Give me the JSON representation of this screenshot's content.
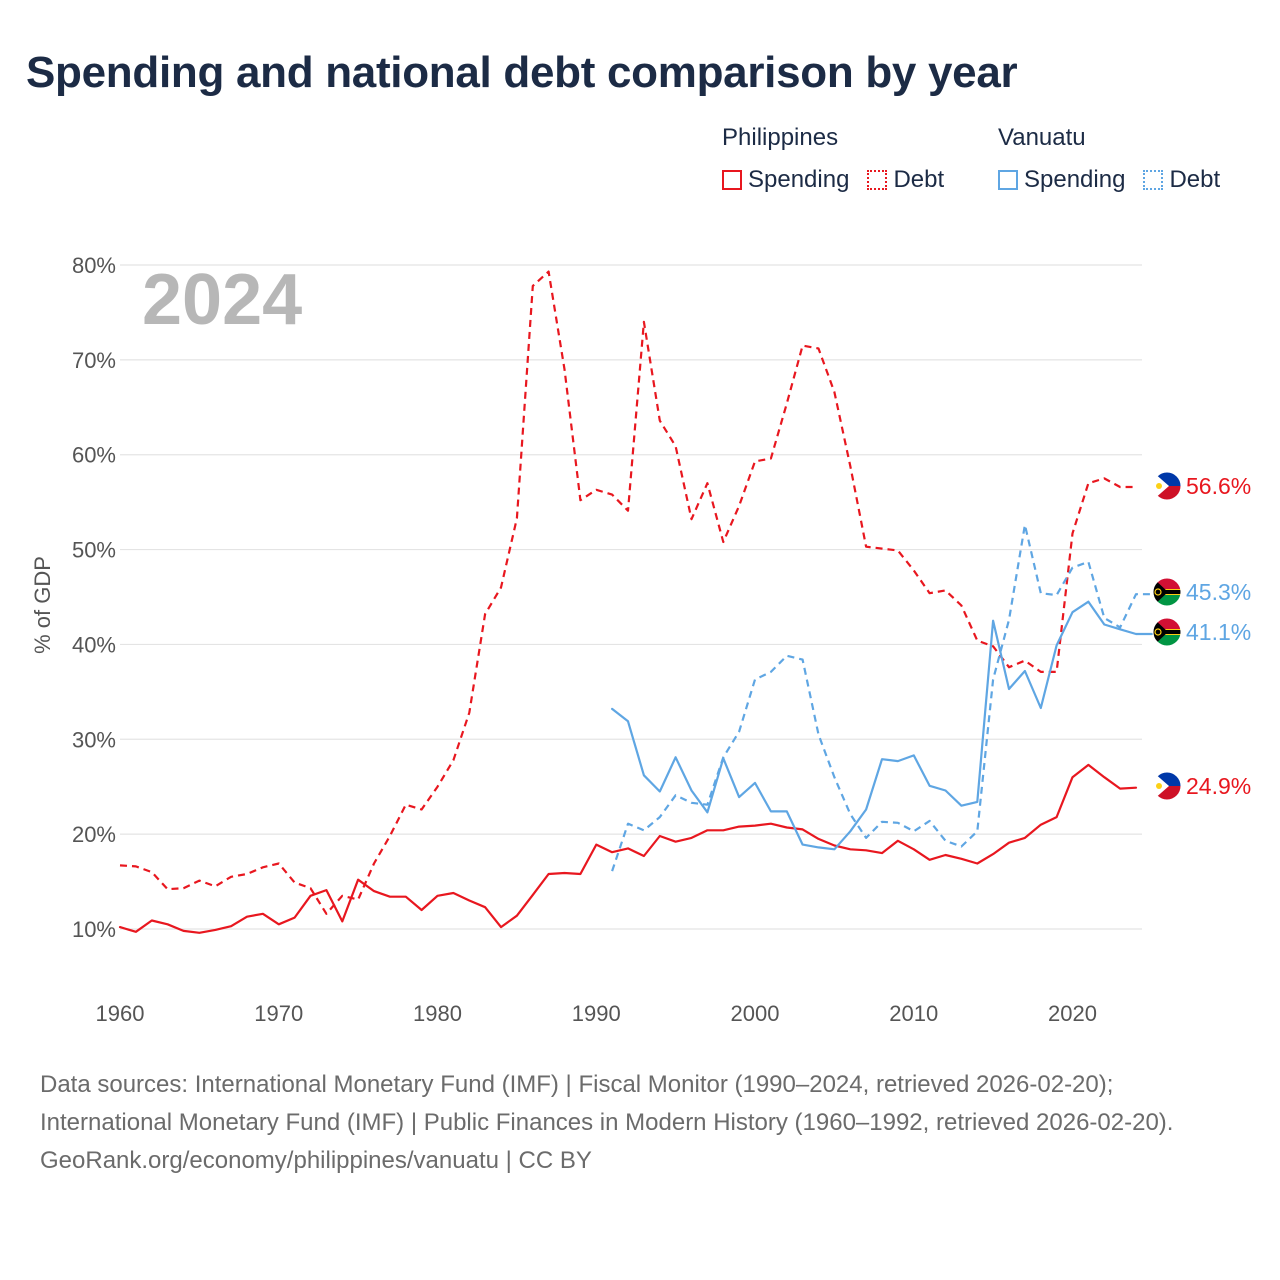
{
  "title": "Spending and national debt comparison by year",
  "legend": {
    "philippines": {
      "name": "Philippines",
      "spending": "Spending",
      "debt": "Debt"
    },
    "vanuatu": {
      "name": "Vanuatu",
      "spending": "Spending",
      "debt": "Debt"
    }
  },
  "colors": {
    "philippines": "#e8171f",
    "vanuatu": "#5fa6e3",
    "grid": "#e4e4e4",
    "year": "#b7b7b7"
  },
  "icons": {
    "philippines": "philippines-flag-icon",
    "vanuatu": "vanuatu-flag-icon"
  },
  "footer": {
    "sources": "Data sources: International Monetary Fund (IMF) | Fiscal Monitor (1990–2024, retrieved 2026-02-20); International Monetary Fund (IMF) | Public Finances in Modern History (1960–1992, retrieved 2026-02-20).",
    "credit": "GeoRank.org/economy/philippines/vanuatu | CC BY"
  },
  "chart_data": {
    "type": "line",
    "year_label": "2024",
    "ylabel": "% of GDP",
    "xlim": [
      1960,
      2024
    ],
    "ylim": [
      10,
      80
    ],
    "x_ticks": [
      1960,
      1970,
      1980,
      1990,
      2000,
      2010,
      2020
    ],
    "y_ticks": [
      10,
      20,
      30,
      40,
      50,
      60,
      70,
      80
    ],
    "x_tick_labels": [
      "1960",
      "1970",
      "1980",
      "1990",
      "2000",
      "2010",
      "2020"
    ],
    "y_tick_labels": [
      "10%",
      "20%",
      "30%",
      "40%",
      "50%",
      "60%",
      "70%",
      "80%"
    ],
    "series": [
      {
        "name": "Philippines Debt",
        "country": "philippines",
        "kind": "debt",
        "start_year": 1960,
        "end_label": "56.6%",
        "values": [
          16.7,
          16.6,
          16.0,
          14.2,
          14.3,
          15.1,
          14.5,
          15.5,
          15.8,
          16.5,
          16.9,
          14.9,
          14.3,
          11.6,
          13.5,
          13.1,
          16.9,
          19.8,
          23.1,
          22.6,
          25.0,
          27.8,
          32.8,
          43.2,
          46.0,
          53.3,
          77.8,
          79.3,
          69.0,
          55.2,
          56.3,
          55.8,
          54.1,
          74.0,
          63.6,
          60.9,
          53.2,
          57.0,
          50.8,
          54.6,
          59.3,
          59.6,
          65.4,
          71.5,
          71.2,
          66.6,
          58.8,
          50.3,
          50.1,
          49.9,
          47.8,
          45.4,
          45.7,
          44.1,
          40.4,
          39.8,
          37.6,
          38.3,
          37.1,
          37.1,
          51.7,
          57.0,
          57.5,
          56.6,
          56.6
        ]
      },
      {
        "name": "Philippines Spending",
        "country": "philippines",
        "kind": "spending",
        "start_year": 1960,
        "end_label": "24.9%",
        "values": [
          10.2,
          9.7,
          10.9,
          10.5,
          9.8,
          9.6,
          9.9,
          10.3,
          11.3,
          11.6,
          10.5,
          11.2,
          13.5,
          14.1,
          10.8,
          15.2,
          14.0,
          13.4,
          13.4,
          12.0,
          13.5,
          13.8,
          13.0,
          12.3,
          10.2,
          11.4,
          13.6,
          15.8,
          15.9,
          15.8,
          18.9,
          18.1,
          18.5,
          17.7,
          19.8,
          19.2,
          19.6,
          20.4,
          20.4,
          20.8,
          20.9,
          21.1,
          20.7,
          20.5,
          19.5,
          18.8,
          18.4,
          18.3,
          18.0,
          19.3,
          18.4,
          17.3,
          17.8,
          17.4,
          16.9,
          17.9,
          19.1,
          19.6,
          21.0,
          21.8,
          26.0,
          27.3,
          26.0,
          24.8,
          24.9
        ]
      },
      {
        "name": "Vanuatu Debt",
        "country": "vanuatu",
        "kind": "debt",
        "start_year": 1991,
        "end_label": "45.3%",
        "values": [
          16.1,
          21.1,
          20.4,
          21.8,
          24.1,
          23.3,
          23.1,
          28.1,
          30.8,
          36.3,
          37.1,
          38.8,
          38.4,
          30.5,
          26.0,
          22.1,
          19.6,
          21.3,
          21.2,
          20.3,
          21.4,
          19.3,
          18.7,
          20.3,
          36.3,
          42.6,
          52.6,
          45.4,
          45.2,
          48.1,
          48.7,
          42.8,
          41.8,
          45.3,
          45.3
        ]
      },
      {
        "name": "Vanuatu Spending",
        "country": "vanuatu",
        "kind": "spending",
        "start_year": 1991,
        "end_label": "41.1%",
        "values": [
          33.2,
          31.9,
          26.2,
          24.5,
          28.1,
          24.6,
          22.3,
          28.0,
          23.9,
          25.4,
          22.4,
          22.4,
          18.9,
          18.6,
          18.4,
          20.3,
          22.6,
          27.9,
          27.7,
          28.3,
          25.1,
          24.6,
          23.0,
          23.4,
          42.5,
          35.3,
          37.2,
          33.3,
          39.9,
          43.4,
          44.5,
          42.1,
          41.6,
          41.1,
          41.1
        ]
      }
    ]
  }
}
